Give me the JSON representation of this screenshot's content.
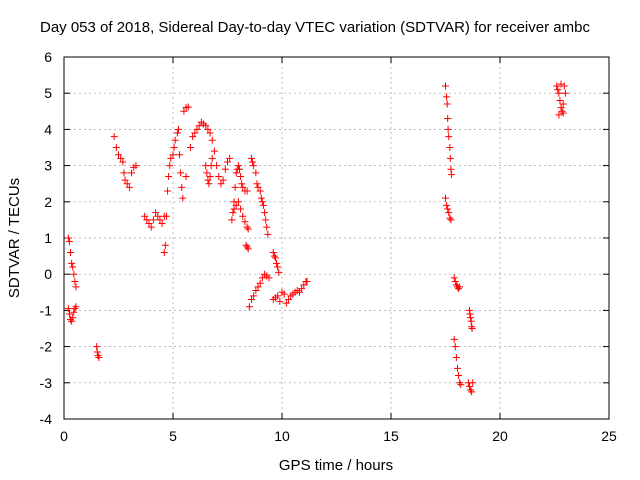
{
  "chart_data": {
    "type": "scatter",
    "title": "Day 053 of 2018, Sidereal Day-to-day VTEC variation (SDTVAR) for receiver ambc",
    "xlabel": "GPS time / hours",
    "ylabel": "SDTVAR / TECUs",
    "xlim": [
      0,
      25
    ],
    "ylim": [
      -4,
      6
    ],
    "xticks": [
      0,
      5,
      10,
      15,
      20,
      25
    ],
    "yticks": [
      -4,
      -3,
      -2,
      -1,
      0,
      1,
      2,
      3,
      4,
      5,
      6
    ],
    "grid": true,
    "marker": "+",
    "color": "#ff0000",
    "series": [
      {
        "name": "SDTVAR",
        "segments": [
          [
            [
              0.2,
              1.0
            ],
            [
              0.25,
              0.9
            ],
            [
              0.3,
              0.6
            ],
            [
              0.35,
              0.3
            ],
            [
              0.4,
              0.2
            ],
            [
              0.45,
              0.0
            ],
            [
              0.5,
              -0.2
            ],
            [
              0.55,
              -0.35
            ]
          ],
          [
            [
              0.2,
              -0.95
            ],
            [
              0.25,
              -1.1
            ],
            [
              0.3,
              -1.25
            ],
            [
              0.35,
              -1.3
            ],
            [
              0.4,
              -1.2
            ],
            [
              0.45,
              -1.05
            ],
            [
              0.5,
              -0.95
            ],
            [
              0.55,
              -0.9
            ]
          ],
          [
            [
              1.5,
              -2.0
            ],
            [
              1.53,
              -2.15
            ],
            [
              1.56,
              -2.25
            ],
            [
              1.6,
              -2.3
            ]
          ],
          [
            [
              2.3,
              3.8
            ],
            [
              2.4,
              3.5
            ],
            [
              2.5,
              3.3
            ],
            [
              2.6,
              3.2
            ],
            [
              2.7,
              3.1
            ],
            [
              2.75,
              2.8
            ],
            [
              2.8,
              2.6
            ],
            [
              2.9,
              2.5
            ],
            [
              3.0,
              2.4
            ],
            [
              3.1,
              2.8
            ],
            [
              3.2,
              2.95
            ],
            [
              3.3,
              3.0
            ]
          ],
          [
            [
              3.7,
              1.6
            ],
            [
              3.8,
              1.5
            ],
            [
              3.9,
              1.4
            ],
            [
              4.0,
              1.3
            ],
            [
              4.1,
              1.5
            ],
            [
              4.2,
              1.7
            ],
            [
              4.3,
              1.6
            ],
            [
              4.4,
              1.5
            ],
            [
              4.5,
              1.4
            ],
            [
              4.6,
              1.6
            ]
          ],
          [
            [
              4.6,
              0.6
            ],
            [
              4.65,
              0.8
            ],
            [
              4.7,
              1.6
            ],
            [
              4.75,
              2.3
            ],
            [
              4.8,
              2.7
            ],
            [
              4.85,
              3.0
            ],
            [
              4.9,
              3.2
            ],
            [
              5.0,
              3.3
            ],
            [
              5.05,
              3.5
            ],
            [
              5.1,
              3.7
            ],
            [
              5.2,
              3.9
            ],
            [
              5.25,
              4.0
            ],
            [
              5.3,
              3.3
            ],
            [
              5.35,
              2.8
            ],
            [
              5.4,
              2.4
            ],
            [
              5.45,
              2.1
            ]
          ],
          [
            [
              5.5,
              4.5
            ],
            [
              5.6,
              4.6
            ],
            [
              5.7,
              4.62
            ],
            [
              5.6,
              2.7
            ]
          ],
          [
            [
              5.8,
              3.5
            ],
            [
              5.9,
              3.8
            ],
            [
              6.0,
              3.9
            ],
            [
              6.1,
              4.0
            ],
            [
              6.2,
              4.1
            ],
            [
              6.3,
              4.2
            ],
            [
              6.4,
              4.15
            ],
            [
              6.5,
              4.1
            ],
            [
              6.6,
              4.0
            ],
            [
              6.7,
              3.9
            ],
            [
              6.8,
              3.7
            ],
            [
              6.9,
              3.4
            ],
            [
              7.0,
              3.0
            ],
            [
              7.1,
              2.7
            ],
            [
              7.2,
              2.5
            ],
            [
              7.3,
              2.6
            ],
            [
              7.4,
              2.9
            ],
            [
              7.5,
              3.1
            ],
            [
              7.6,
              3.2
            ]
          ],
          [
            [
              6.5,
              3.0
            ],
            [
              6.55,
              2.8
            ],
            [
              6.6,
              2.6
            ],
            [
              6.65,
              2.5
            ],
            [
              6.7,
              2.7
            ],
            [
              6.75,
              3.0
            ],
            [
              6.8,
              3.2
            ]
          ],
          [
            [
              7.7,
              1.5
            ],
            [
              7.75,
              1.7
            ],
            [
              7.8,
              2.0
            ],
            [
              7.85,
              2.4
            ],
            [
              7.9,
              2.8
            ],
            [
              7.95,
              2.9
            ],
            [
              8.0,
              3.0
            ],
            [
              8.05,
              2.9
            ],
            [
              8.1,
              2.7
            ],
            [
              8.15,
              2.5
            ],
            [
              8.2,
              2.4
            ],
            [
              8.3,
              2.3
            ],
            [
              8.4,
              2.3
            ]
          ],
          [
            [
              7.8,
              1.8
            ],
            [
              7.9,
              1.9
            ],
            [
              8.0,
              2.0
            ],
            [
              8.1,
              1.8
            ],
            [
              8.2,
              1.6
            ],
            [
              8.3,
              1.45
            ],
            [
              8.4,
              1.3
            ],
            [
              8.45,
              1.25
            ]
          ],
          [
            [
              8.35,
              0.8
            ],
            [
              8.4,
              0.75
            ],
            [
              8.45,
              0.7
            ]
          ],
          [
            [
              8.6,
              3.2
            ],
            [
              8.65,
              3.1
            ],
            [
              8.7,
              3.0
            ],
            [
              8.8,
              2.8
            ],
            [
              8.85,
              2.5
            ],
            [
              8.9,
              2.4
            ],
            [
              9.0,
              2.3
            ],
            [
              9.05,
              2.1
            ],
            [
              9.1,
              2.0
            ],
            [
              9.15,
              1.9
            ],
            [
              9.2,
              1.7
            ],
            [
              9.25,
              1.5
            ],
            [
              9.3,
              1.3
            ],
            [
              9.35,
              1.1
            ]
          ],
          [
            [
              8.5,
              -0.9
            ],
            [
              8.6,
              -0.7
            ],
            [
              8.7,
              -0.6
            ],
            [
              8.8,
              -0.45
            ],
            [
              8.9,
              -0.35
            ],
            [
              9.0,
              -0.25
            ],
            [
              9.1,
              -0.1
            ],
            [
              9.2,
              0.0
            ],
            [
              9.3,
              -0.05
            ],
            [
              9.4,
              -0.1
            ]
          ],
          [
            [
              9.6,
              0.6
            ],
            [
              9.65,
              0.5
            ],
            [
              9.7,
              0.45
            ],
            [
              9.75,
              0.3
            ],
            [
              9.8,
              0.2
            ],
            [
              9.85,
              0.05
            ]
          ],
          [
            [
              9.6,
              -0.7
            ],
            [
              9.7,
              -0.65
            ],
            [
              9.8,
              -0.6
            ],
            [
              9.9,
              -0.75
            ],
            [
              10.0,
              -0.5
            ],
            [
              10.1,
              -0.55
            ],
            [
              10.2,
              -0.8
            ],
            [
              10.3,
              -0.7
            ],
            [
              10.4,
              -0.6
            ],
            [
              10.5,
              -0.55
            ],
            [
              10.6,
              -0.5
            ],
            [
              10.7,
              -0.45
            ],
            [
              10.8,
              -0.5
            ],
            [
              10.9,
              -0.4
            ],
            [
              11.0,
              -0.3
            ],
            [
              11.1,
              -0.2
            ],
            [
              11.15,
              -0.2
            ]
          ],
          [
            [
              17.5,
              5.2
            ],
            [
              17.55,
              4.9
            ],
            [
              17.58,
              4.7
            ],
            [
              17.6,
              4.3
            ],
            [
              17.62,
              4.0
            ],
            [
              17.65,
              3.8
            ],
            [
              17.7,
              3.5
            ],
            [
              17.72,
              3.2
            ],
            [
              17.75,
              2.9
            ],
            [
              17.78,
              2.75
            ]
          ],
          [
            [
              17.5,
              2.1
            ],
            [
              17.55,
              1.9
            ],
            [
              17.6,
              1.8
            ],
            [
              17.65,
              1.7
            ],
            [
              17.7,
              1.55
            ],
            [
              17.75,
              1.5
            ]
          ],
          [
            [
              17.9,
              -0.1
            ],
            [
              17.95,
              -0.2
            ],
            [
              18.0,
              -0.3
            ],
            [
              18.05,
              -0.35
            ],
            [
              18.1,
              -0.4
            ],
            [
              18.15,
              -0.35
            ]
          ],
          [
            [
              17.9,
              -1.8
            ],
            [
              17.95,
              -2.0
            ],
            [
              18.0,
              -2.3
            ],
            [
              18.05,
              -2.6
            ],
            [
              18.1,
              -2.8
            ],
            [
              18.15,
              -3.0
            ],
            [
              18.2,
              -3.05
            ]
          ],
          [
            [
              18.6,
              -1.0
            ],
            [
              18.62,
              -1.1
            ],
            [
              18.65,
              -1.2
            ],
            [
              18.68,
              -1.3
            ],
            [
              18.7,
              -1.45
            ],
            [
              18.72,
              -1.5
            ]
          ],
          [
            [
              18.55,
              -3.0
            ],
            [
              18.6,
              -3.1
            ],
            [
              18.65,
              -3.2
            ],
            [
              18.7,
              -3.25
            ],
            [
              18.75,
              -3.0
            ]
          ],
          [
            [
              22.6,
              5.2
            ],
            [
              22.65,
              5.1
            ],
            [
              22.7,
              5.0
            ],
            [
              22.75,
              4.8
            ],
            [
              22.8,
              4.6
            ],
            [
              22.85,
              4.5
            ],
            [
              22.9,
              4.7
            ],
            [
              22.95,
              5.2
            ],
            [
              23.0,
              5.0
            ],
            [
              22.7,
              4.4
            ],
            [
              22.8,
              5.25
            ],
            [
              22.9,
              4.45
            ]
          ]
        ]
      }
    ]
  }
}
